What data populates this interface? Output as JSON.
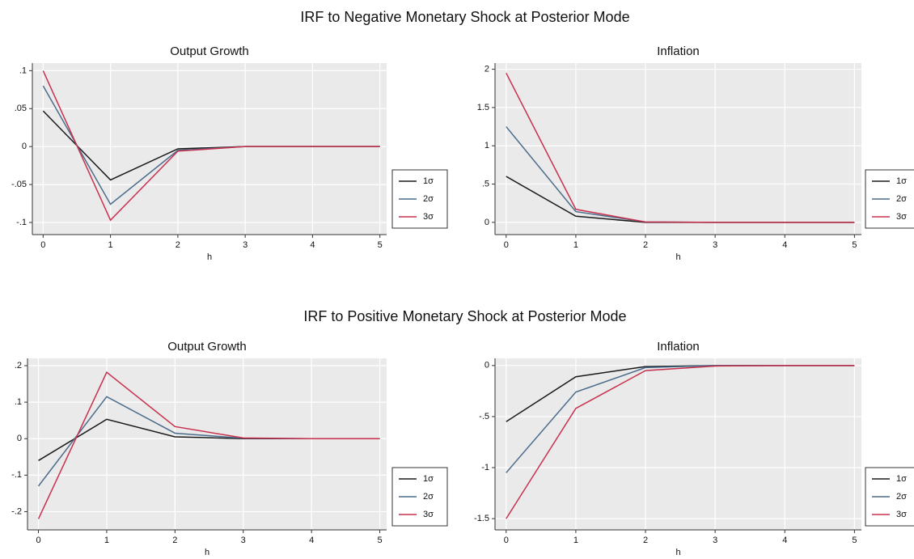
{
  "titles": [
    "IRF to Negative Monetary Shock at Posterior Mode",
    "IRF to Positive Monetary Shock at Posterior Mode"
  ],
  "chart_data": [
    {
      "type": "line",
      "title": "Output Growth",
      "x_label": "h",
      "x": [
        0,
        1,
        2,
        3,
        4,
        5
      ],
      "xlim": [
        -0.16,
        5.1
      ],
      "xticks": [
        0,
        1,
        2,
        3,
        4,
        5
      ],
      "ylim": [
        -0.116,
        0.11
      ],
      "yticks": [
        {
          "value": -0.1,
          "label": "-.1"
        },
        {
          "value": -0.05,
          "label": "-.05"
        },
        0,
        {
          "value": 0.05,
          "label": ".05"
        },
        {
          "value": 0.1,
          "label": ".1"
        }
      ],
      "grid": true,
      "legend": "right",
      "series": [
        {
          "name": "1σ",
          "color": "#1a1a1a",
          "values": [
            0.047,
            -0.044,
            -0.003,
            0,
            0,
            0
          ]
        },
        {
          "name": "2σ",
          "color": "#4b6d8c",
          "values": [
            0.08,
            -0.076,
            -0.005,
            0,
            0,
            0
          ]
        },
        {
          "name": "3σ",
          "color": "#c8304e",
          "values": [
            0.1,
            -0.097,
            -0.006,
            0,
            0,
            0
          ]
        }
      ]
    },
    {
      "type": "line",
      "title": "Inflation",
      "x_label": "h",
      "x": [
        0,
        1,
        2,
        3,
        4,
        5
      ],
      "xlim": [
        -0.16,
        5.1
      ],
      "xticks": [
        0,
        1,
        2,
        3,
        4,
        5
      ],
      "ylim": [
        -0.16,
        2.08
      ],
      "yticks": [
        0,
        {
          "value": 0.5,
          "label": ".5"
        },
        1,
        1.5,
        2
      ],
      "grid": true,
      "legend": "right",
      "series": [
        {
          "name": "1σ",
          "color": "#1a1a1a",
          "values": [
            0.6,
            0.08,
            0,
            0,
            0,
            0
          ]
        },
        {
          "name": "2σ",
          "color": "#4b6d8c",
          "values": [
            1.25,
            0.14,
            0.005,
            0,
            0,
            0
          ]
        },
        {
          "name": "3σ",
          "color": "#c8304e",
          "values": [
            1.95,
            0.17,
            0.005,
            0,
            0,
            0
          ]
        }
      ]
    },
    {
      "type": "line",
      "title": "Output Growth",
      "x_label": "h",
      "x": [
        0,
        1,
        2,
        3,
        4,
        5
      ],
      "xlim": [
        -0.16,
        5.1
      ],
      "xticks": [
        0,
        1,
        2,
        3,
        4,
        5
      ],
      "ylim": [
        -0.25,
        0.22
      ],
      "yticks": [
        {
          "value": -0.2,
          "label": "-.2"
        },
        {
          "value": -0.1,
          "label": "-.1"
        },
        0,
        {
          "value": 0.1,
          "label": ".1"
        },
        {
          "value": 0.2,
          "label": ".2"
        }
      ],
      "grid": true,
      "legend": "right",
      "series": [
        {
          "name": "1σ",
          "color": "#1a1a1a",
          "values": [
            -0.06,
            0.053,
            0.005,
            0,
            0,
            0
          ]
        },
        {
          "name": "2σ",
          "color": "#4b6d8c",
          "values": [
            -0.13,
            0.115,
            0.015,
            0.001,
            0,
            0
          ]
        },
        {
          "name": "3σ",
          "color": "#c8304e",
          "values": [
            -0.22,
            0.182,
            0.033,
            0.002,
            0,
            0
          ]
        }
      ]
    },
    {
      "type": "line",
      "title": "Inflation",
      "x_label": "h",
      "x": [
        0,
        1,
        2,
        3,
        4,
        5
      ],
      "xlim": [
        -0.16,
        5.1
      ],
      "xticks": [
        0,
        1,
        2,
        3,
        4,
        5
      ],
      "ylim": [
        -1.61,
        0.07
      ],
      "yticks": [
        -1.5,
        -1,
        {
          "value": -0.5,
          "label": "-.5"
        },
        0
      ],
      "grid": true,
      "legend": "right",
      "series": [
        {
          "name": "1σ",
          "color": "#1a1a1a",
          "values": [
            -0.55,
            -0.11,
            -0.01,
            0,
            0,
            0
          ]
        },
        {
          "name": "2σ",
          "color": "#4b6d8c",
          "values": [
            -1.05,
            -0.26,
            -0.02,
            0,
            0,
            0
          ]
        },
        {
          "name": "3σ",
          "color": "#c8304e",
          "values": [
            -1.5,
            -0.42,
            -0.05,
            -0.005,
            0,
            0
          ]
        }
      ]
    }
  ]
}
